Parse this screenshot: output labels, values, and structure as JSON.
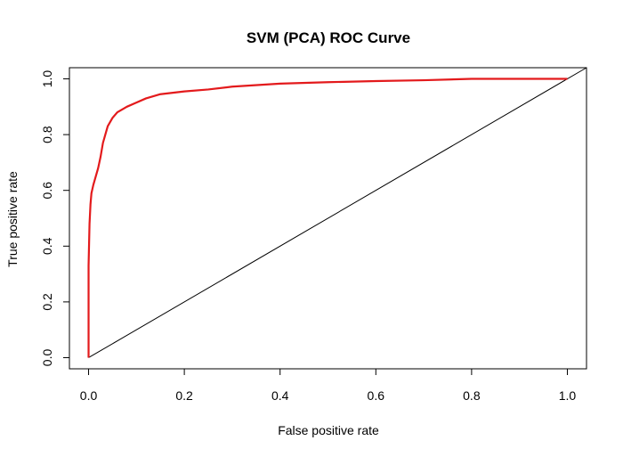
{
  "chart_data": {
    "type": "line",
    "title": "SVM (PCA) ROC Curve",
    "xlabel": "False positive rate",
    "ylabel": "True positive rate",
    "xlim": [
      -0.04,
      1.04
    ],
    "ylim": [
      -0.04,
      1.04
    ],
    "xticks": [
      0.0,
      0.2,
      0.4,
      0.6,
      0.8,
      1.0
    ],
    "xtick_labels": [
      "0.0",
      "0.2",
      "0.4",
      "0.6",
      "0.8",
      "1.0"
    ],
    "yticks": [
      0.0,
      0.2,
      0.4,
      0.6,
      0.8,
      1.0
    ],
    "ytick_labels": [
      "0.0",
      "0.2",
      "0.4",
      "0.6",
      "0.8",
      "1.0"
    ],
    "grid": false,
    "legend": "none",
    "series": [
      {
        "color": "#e31a1c",
        "x": [
          0.0,
          0.0,
          0.002,
          0.004,
          0.006,
          0.01,
          0.015,
          0.02,
          0.025,
          0.03,
          0.035,
          0.04,
          0.05,
          0.06,
          0.07,
          0.08,
          0.1,
          0.12,
          0.15,
          0.2,
          0.25,
          0.3,
          0.4,
          0.5,
          0.6,
          0.7,
          0.8,
          0.9,
          1.0
        ],
        "y": [
          0.0,
          0.33,
          0.48,
          0.55,
          0.59,
          0.62,
          0.65,
          0.68,
          0.72,
          0.77,
          0.8,
          0.83,
          0.86,
          0.88,
          0.89,
          0.9,
          0.915,
          0.93,
          0.945,
          0.955,
          0.962,
          0.972,
          0.983,
          0.988,
          0.992,
          0.995,
          1.0,
          1.0,
          1.0
        ]
      },
      {
        "color": "#000000",
        "x": [
          0.0,
          1.04
        ],
        "y": [
          0.0,
          1.04
        ]
      }
    ]
  }
}
